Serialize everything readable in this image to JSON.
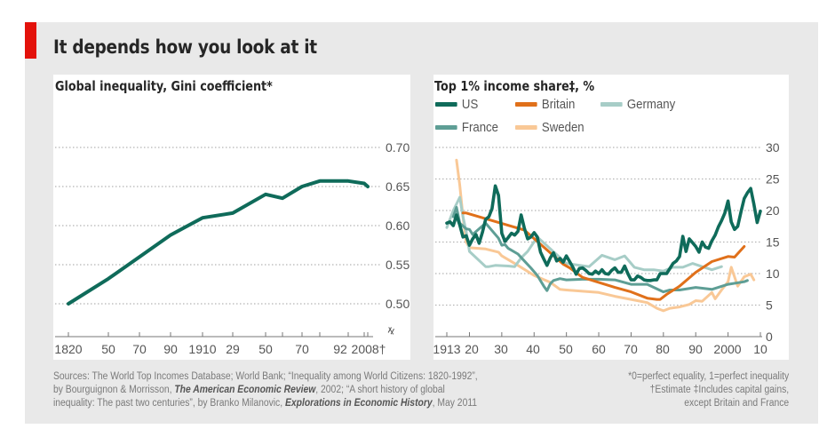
{
  "header": {
    "title": "It depends how you look at it",
    "accent_color": "#e3120b"
  },
  "chart_data": [
    {
      "type": "line",
      "title": "Global inequality, Gini coefficient*",
      "xlabel": "",
      "ylabel": "",
      "ylim": [
        0.5,
        0.7
      ],
      "yticks": [
        "0.70",
        "0.65",
        "0.60",
        "0.55",
        "0.50"
      ],
      "y_axis_break": true,
      "grid": true,
      "x_tick_labels": [
        "1820",
        "50",
        "70",
        "90",
        "1910",
        "29",
        "50",
        "70",
        "92",
        "2008†"
      ],
      "series": [
        {
          "name": "Global Gini",
          "color": "#0f6b5a",
          "x": [
            1820,
            1850,
            1870,
            1890,
            1910,
            1929,
            1950,
            1960,
            1970,
            1980,
            1992,
            2002,
            2008
          ],
          "values": [
            0.5,
            0.532,
            0.56,
            0.588,
            0.61,
            0.616,
            0.64,
            0.635,
            0.65,
            0.657,
            0.657,
            0.654,
            0.65
          ]
        }
      ]
    },
    {
      "type": "line",
      "title": "Top 1% income share‡, %",
      "xlabel": "",
      "ylabel": "",
      "ylim": [
        0,
        30
      ],
      "yticks": [
        "30",
        "25",
        "20",
        "15",
        "10",
        "5",
        "0"
      ],
      "grid": true,
      "legend": "top-left",
      "x_tick_labels": [
        "1913",
        "20",
        "30",
        "40",
        "50",
        "60",
        "70",
        "80",
        "90",
        "2000",
        "10"
      ],
      "series": [
        {
          "name": "US",
          "color": "#0f6b5a",
          "x": [
            1913,
            1914,
            1915,
            1916,
            1917,
            1918,
            1919,
            1920,
            1921,
            1922,
            1923,
            1924,
            1925,
            1926,
            1927,
            1928,
            1929,
            1930,
            1931,
            1932,
            1933,
            1934,
            1935,
            1936,
            1937,
            1938,
            1939,
            1940,
            1941,
            1942,
            1943,
            1944,
            1945,
            1946,
            1947,
            1948,
            1949,
            1950,
            1951,
            1952,
            1953,
            1954,
            1955,
            1956,
            1957,
            1958,
            1959,
            1960,
            1961,
            1962,
            1963,
            1964,
            1965,
            1966,
            1967,
            1968,
            1969,
            1970,
            1971,
            1972,
            1973,
            1974,
            1975,
            1976,
            1977,
            1978,
            1979,
            1980,
            1981,
            1982,
            1983,
            1984,
            1985,
            1986,
            1987,
            1988,
            1989,
            1990,
            1991,
            1992,
            1993,
            1994,
            1995,
            1996,
            1997,
            1998,
            1999,
            2000,
            2001,
            2002,
            2003,
            2004,
            2005,
            2006,
            2007,
            2008,
            2009,
            2010
          ],
          "values": [
            18.0,
            18.2,
            17.6,
            19.3,
            17.7,
            15.8,
            16.0,
            14.5,
            15.5,
            16.2,
            14.8,
            16.5,
            18.6,
            19.0,
            20.3,
            23.9,
            22.4,
            16.4,
            15.1,
            15.7,
            16.4,
            16.1,
            16.7,
            19.3,
            17.2,
            15.5,
            15.8,
            16.5,
            15.8,
            13.4,
            12.3,
            11.3,
            12.5,
            13.3,
            12.0,
            12.4,
            11.8,
            12.8,
            11.9,
            11.0,
            9.9,
            10.8,
            10.9,
            10.5,
            10.0,
            9.9,
            10.4,
            10.0,
            10.6,
            10.0,
            9.9,
            10.5,
            10.9,
            10.2,
            10.2,
            11.2,
            10.0,
            9.0,
            9.0,
            9.6,
            9.4,
            9.0,
            8.9,
            8.9,
            9.0,
            9.0,
            10.0,
            10.0,
            10.0,
            10.8,
            11.6,
            12.0,
            12.7,
            15.9,
            13.5,
            15.5,
            14.9,
            14.3,
            13.4,
            15.0,
            14.2,
            14.0,
            15.2,
            16.1,
            17.4,
            18.4,
            19.6,
            21.5,
            18.2,
            17.0,
            17.5,
            19.8,
            21.9,
            22.8,
            23.5,
            21.0,
            18.1,
            19.9
          ]
        },
        {
          "name": "Britain",
          "color": "#e0701a",
          "x": [
            1918,
            1919,
            1937,
            1949,
            1951,
            1955,
            1960,
            1965,
            1970,
            1975,
            1978,
            1979,
            1981,
            1985,
            1990,
            1995,
            2000,
            2002,
            2005
          ],
          "values": [
            19.6,
            19.6,
            16.9,
            11.5,
            10.9,
            9.4,
            8.6,
            7.8,
            7.1,
            6.1,
            5.9,
            5.9,
            6.7,
            8.0,
            10.2,
            11.9,
            12.7,
            12.6,
            14.3
          ]
        },
        {
          "name": "Germany",
          "color": "#a7cdc7",
          "x": [
            1913,
            1915,
            1917,
            1918,
            1919,
            1920,
            1925,
            1926,
            1928,
            1932,
            1934,
            1936,
            1938,
            1941,
            1950,
            1957,
            1961,
            1965,
            1968,
            1971,
            1974,
            1977,
            1980,
            1983,
            1986,
            1989,
            1992,
            1995,
            1998
          ],
          "values": [
            17.3,
            20.0,
            22.1,
            19.0,
            16.7,
            13.5,
            11.1,
            11.1,
            11.3,
            11.2,
            11.1,
            12.5,
            13.5,
            15.8,
            11.6,
            11.1,
            12.9,
            12.2,
            12.8,
            11.0,
            10.6,
            10.6,
            10.4,
            11.0,
            11.0,
            11.6,
            11.1,
            10.6,
            11.1
          ]
        },
        {
          "name": "France",
          "color": "#5e9e95",
          "x": [
            1915,
            1916,
            1917,
            1919,
            1920,
            1921,
            1925,
            1929,
            1930,
            1931,
            1932,
            1935,
            1937,
            1939,
            1941,
            1943,
            1944,
            1945,
            1946,
            1948,
            1950,
            1955,
            1960,
            1965,
            1970,
            1975,
            1980,
            1982,
            1985,
            1990,
            1995,
            2000,
            2005,
            2006
          ],
          "values": [
            19.0,
            20.5,
            18.0,
            17.1,
            17.0,
            16.2,
            18.0,
            15.6,
            14.5,
            14.6,
            14.0,
            13.1,
            12.0,
            10.9,
            9.7,
            8.0,
            7.3,
            8.4,
            8.9,
            9.2,
            9.0,
            9.1,
            9.1,
            9.0,
            8.3,
            8.3,
            7.1,
            7.4,
            7.4,
            7.8,
            7.5,
            8.3,
            8.7,
            8.9
          ]
        },
        {
          "name": "Sweden",
          "color": "#f9c896",
          "x": [
            1916,
            1917,
            1918,
            1919,
            1920,
            1925,
            1929,
            1930,
            1935,
            1940,
            1945,
            1948,
            1950,
            1955,
            1960,
            1965,
            1970,
            1975,
            1978,
            1980,
            1982,
            1985,
            1988,
            1990,
            1992,
            1995,
            1996,
            1998,
            2000,
            2001,
            2003,
            2005,
            2007,
            2008
          ],
          "values": [
            28.0,
            24.0,
            19.0,
            15.0,
            14.1,
            13.9,
            13.4,
            12.8,
            11.3,
            9.7,
            8.6,
            7.5,
            7.4,
            7.2,
            7.0,
            6.4,
            5.9,
            5.4,
            4.5,
            4.1,
            4.5,
            4.7,
            5.1,
            5.7,
            5.6,
            7.0,
            6.0,
            7.4,
            8.7,
            11.0,
            8.0,
            9.5,
            9.9,
            9.0
          ]
        }
      ]
    }
  ],
  "footer": {
    "sources_line1": "Sources: The World Top Incomes Database; World Bank; “Inequality among World Citizens: 1820-1992”,",
    "sources_line2_a": "by Bourguignon & Morrisson, ",
    "sources_line2_journal": "The American Economic Review",
    "sources_line2_b": ", 2002; “A short history of global",
    "sources_line3_a": "inequality: The past two centuries”, by Branko Milanovic, ",
    "sources_line3_journal": "Explorations in Economic History",
    "sources_line3_b": ", May 2011",
    "note1": "*0=perfect equality, 1=perfect inequality",
    "note2": "†Estimate   ‡Includes capital gains,",
    "note3": "except Britain and France"
  }
}
